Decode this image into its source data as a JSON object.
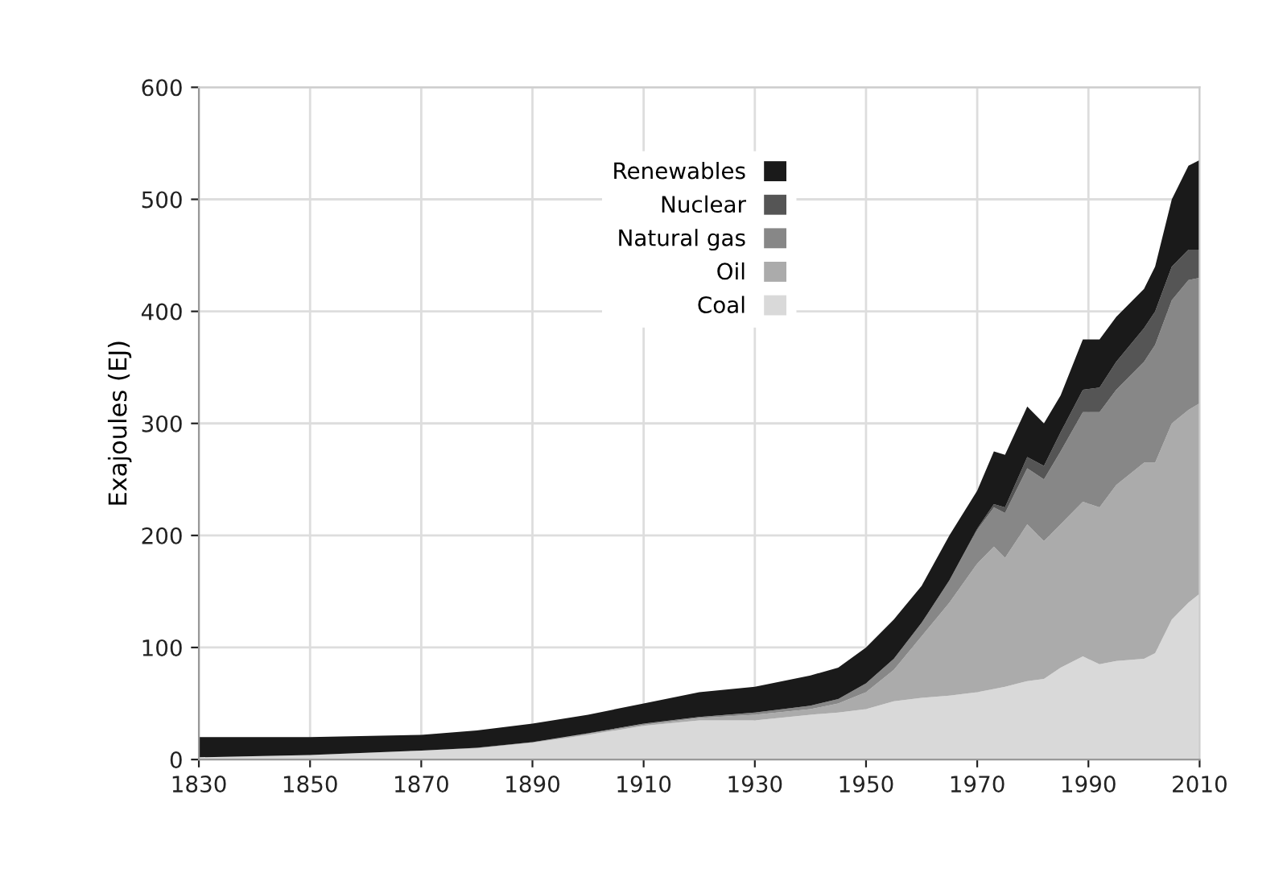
{
  "chart_data": {
    "type": "area",
    "stacked": true,
    "ylabel": "Exajoules (EJ)",
    "x": [
      1830,
      1850,
      1870,
      1880,
      1890,
      1900,
      1910,
      1920,
      1930,
      1940,
      1945,
      1950,
      1955,
      1960,
      1965,
      1970,
      1973,
      1975,
      1979,
      1982,
      1985,
      1989,
      1992,
      1995,
      2000,
      2002,
      2005,
      2008,
      2010
    ],
    "series": [
      {
        "name": "Coal",
        "color": "#d9d9d9",
        "values": [
          2,
          4,
          8,
          10,
          15,
          22,
          30,
          35,
          35,
          40,
          42,
          45,
          52,
          55,
          57,
          60,
          63,
          65,
          70,
          72,
          82,
          92,
          85,
          88,
          90,
          95,
          125,
          140,
          148
        ]
      },
      {
        "name": "Oil",
        "color": "#ababab",
        "values": [
          0,
          0,
          0,
          0.5,
          0.5,
          1,
          1,
          2,
          5,
          5,
          8,
          15,
          28,
          55,
          83,
          115,
          127,
          115,
          140,
          123,
          128,
          138,
          140,
          157,
          175,
          170,
          175,
          172,
          170
        ]
      },
      {
        "name": "Natural gas",
        "color": "#878787",
        "values": [
          0,
          0,
          0,
          0,
          0,
          0.5,
          1,
          1,
          2,
          3,
          4,
          8,
          10,
          12,
          20,
          30,
          35,
          40,
          50,
          55,
          65,
          80,
          85,
          85,
          90,
          105,
          110,
          116,
          112
        ]
      },
      {
        "name": "Nuclear",
        "color": "#555555",
        "values": [
          0,
          0,
          0,
          0,
          0,
          0,
          0,
          0,
          0,
          0,
          0,
          0,
          0,
          0,
          0,
          1,
          3,
          5,
          10,
          12,
          17,
          20,
          22,
          25,
          30,
          30,
          30,
          27,
          25
        ]
      },
      {
        "name": "Renewables",
        "color": "#1a1a1a",
        "values": [
          18,
          16,
          14,
          15.5,
          16.5,
          16.5,
          18,
          22,
          23,
          27,
          28,
          32,
          35,
          33,
          40,
          34,
          47,
          47,
          45,
          38,
          33,
          45,
          43,
          40,
          35,
          40,
          60,
          75,
          80
        ]
      }
    ],
    "xlim": [
      1830,
      2010
    ],
    "xticks": [
      1830,
      1850,
      1870,
      1890,
      1910,
      1930,
      1950,
      1970,
      1990,
      2010
    ],
    "ylim": [
      0,
      600
    ],
    "yticks": [
      0,
      100,
      200,
      300,
      400,
      500,
      600
    ],
    "grid": true,
    "legend": "top"
  }
}
